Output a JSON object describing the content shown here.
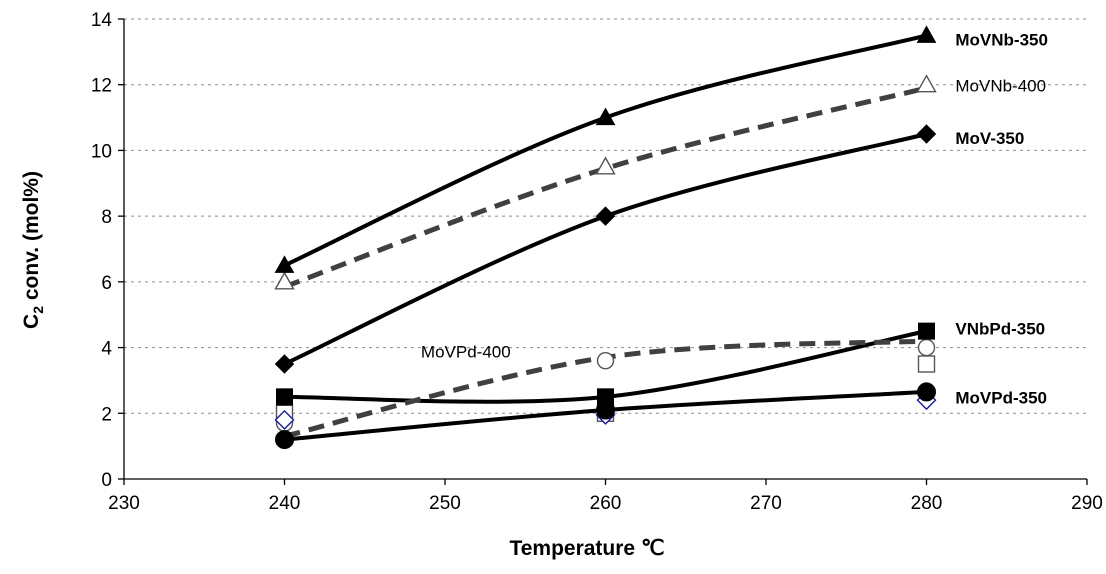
{
  "chart_data": {
    "type": "scatter",
    "xlabel": "Temperature ℃",
    "ylabel_main": "C",
    "ylabel_sub": "2",
    "ylabel_rest": " conv. (mol%)",
    "xlim": [
      230,
      290
    ],
    "ylim": [
      0,
      14
    ],
    "x_ticks": [
      "230",
      "240",
      "250",
      "260",
      "270",
      "280",
      "290"
    ],
    "y_ticks": [
      "0",
      "2",
      "4",
      "6",
      "8",
      "10",
      "12",
      "14"
    ],
    "grid": "horizontal dashed",
    "series": [
      {
        "name": "MoVNb-350",
        "marker": "filled-triangle",
        "x": [
          240,
          260,
          280
        ],
        "y": [
          6.5,
          11.0,
          13.5
        ],
        "curve_y": [
          6.5,
          11.0,
          13.5
        ],
        "curve_style": "solid"
      },
      {
        "name": "MoVNb-400",
        "marker": "open-triangle",
        "x": [
          240,
          260,
          280
        ],
        "y": [
          6.0,
          9.5,
          12.0
        ],
        "curve_y": [
          5.85,
          9.45,
          11.9
        ],
        "curve_style": "dashed"
      },
      {
        "name": "MoV-350",
        "marker": "filled-diamond",
        "x": [
          240,
          260,
          280
        ],
        "y": [
          3.5,
          8.0,
          10.5
        ],
        "curve_y": [
          3.5,
          8.0,
          10.5
        ],
        "curve_style": "solid"
      },
      {
        "name": "VNbPd-350",
        "marker": "filled-square",
        "x": [
          240,
          260,
          280
        ],
        "y": [
          2.5,
          2.5,
          4.5
        ],
        "curve_y": [
          2.5,
          2.5,
          4.5
        ],
        "curve_style": "solid"
      },
      {
        "name": "MoVPd-400",
        "marker": "open-circle",
        "x": [
          240,
          260,
          280
        ],
        "y": [
          1.7,
          3.6,
          4.0
        ],
        "curve_y": [
          1.3,
          3.7,
          4.2
        ],
        "curve_style": "dashed"
      },
      {
        "name": "MoVPd-350",
        "marker": "filled-circle",
        "x": [
          240,
          260,
          280
        ],
        "y": [
          1.2,
          2.1,
          2.65
        ],
        "curve_y": [
          1.2,
          2.1,
          2.65
        ],
        "curve_style": "solid"
      },
      {
        "name": "",
        "marker": "open-square",
        "x": [
          240,
          260,
          280
        ],
        "y": [
          2.0,
          2.0,
          3.5
        ]
      },
      {
        "name": "",
        "marker": "open-diamond",
        "x": [
          240,
          260,
          280
        ],
        "y": [
          1.8,
          1.95,
          2.4
        ]
      }
    ],
    "labels": [
      {
        "text": "MoVNb-350",
        "bold": true,
        "x": 281.8,
        "y": 13.2
      },
      {
        "text": "MoVNb-400",
        "bold": false,
        "x": 281.8,
        "y": 11.8
      },
      {
        "text": "MoV-350",
        "bold": true,
        "x": 281.8,
        "y": 10.2
      },
      {
        "text": "VNbPd-350",
        "bold": true,
        "x": 281.8,
        "y": 4.4
      },
      {
        "text": "MoVPd-400",
        "bold": false,
        "x": 248.5,
        "y": 3.7
      },
      {
        "text": "MoVPd-350",
        "bold": true,
        "x": 281.8,
        "y": 2.3
      }
    ]
  }
}
